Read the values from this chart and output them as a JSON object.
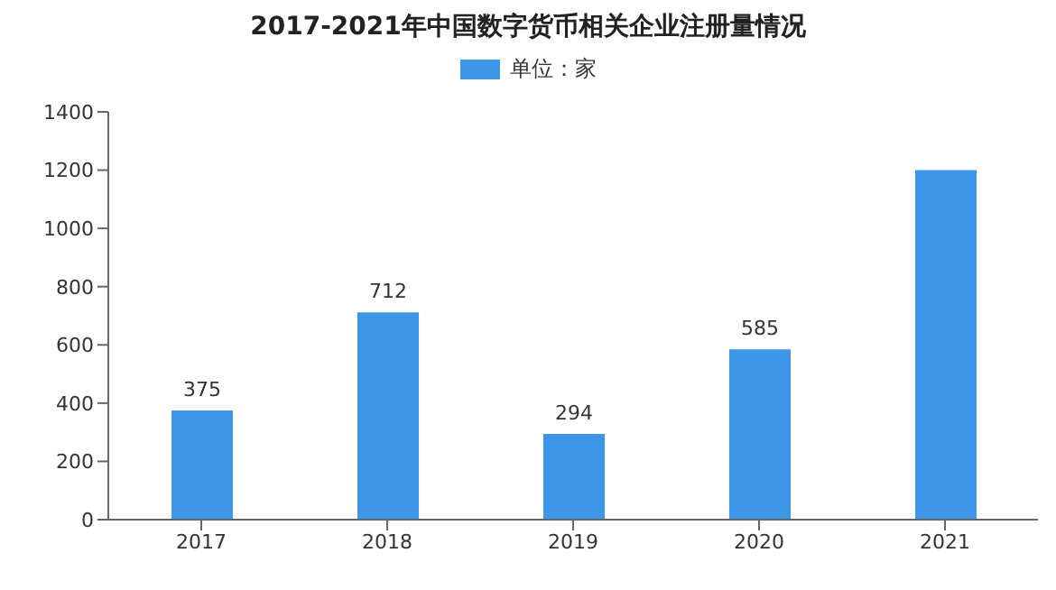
{
  "chart_data": {
    "type": "bar",
    "title": "2017-2021年中国数字货币相关企业注册量情况",
    "categories": [
      "2017",
      "2018",
      "2019",
      "2020",
      "2021"
    ],
    "series": [
      {
        "name": "单位：家",
        "color": "#3d96e8",
        "values": [
          375,
          712,
          294,
          585,
          1200
        ],
        "value_labels": [
          "375",
          "712",
          "294",
          "585",
          null
        ]
      }
    ],
    "ylim": [
      0,
      1400
    ],
    "yticks": [
      0,
      200,
      400,
      600,
      800,
      1000,
      1200,
      1400
    ],
    "grid": false,
    "legend": "top"
  }
}
